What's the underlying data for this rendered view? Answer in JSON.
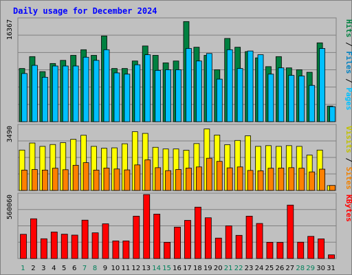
{
  "chart_data": {
    "type": "bar",
    "title": "Daily usage for December 2024",
    "categories": [
      "1",
      "2",
      "3",
      "4",
      "5",
      "6",
      "7",
      "8",
      "9",
      "10",
      "11",
      "12",
      "13",
      "14",
      "15",
      "16",
      "17",
      "18",
      "19",
      "20",
      "21",
      "22",
      "23",
      "24",
      "25",
      "26",
      "27",
      "28",
      "29",
      "30",
      "31"
    ],
    "weekend_days": [
      "1",
      "7",
      "8",
      "14",
      "15",
      "21",
      "22",
      "28",
      "29"
    ],
    "panels": [
      {
        "id": "hits",
        "max_label": "16367",
        "ylim": [
          0,
          16367
        ],
        "right_label_parts": [
          {
            "text": "Hits",
            "color": "#008040"
          },
          {
            "text": " / ",
            "color": "#000000"
          },
          {
            "text": "Files",
            "color": "#0080c0"
          },
          {
            "text": " / ",
            "color": "#000000"
          },
          {
            "text": "Pages",
            "color": "#00c0ff"
          }
        ],
        "series": [
          {
            "name": "Hits",
            "color": "#008040",
            "values": [
              8500,
              10400,
              8000,
              9300,
              9800,
              10600,
              11500,
              10600,
              13700,
              8500,
              8500,
              9700,
              12100,
              10600,
              9400,
              9700,
              16000,
              11900,
              10600,
              8300,
              13300,
              11900,
              11200,
              10200,
              8800,
              10400,
              8600,
              8300,
              7900,
              12600,
              2500
            ]
          },
          {
            "name": "Pages",
            "color": "#00c0ff",
            "values": [
              7700,
              9000,
              7100,
              8900,
              8900,
              8900,
              10300,
              9800,
              11500,
              7800,
              7600,
              9100,
              10700,
              8200,
              8300,
              8300,
              11700,
              9700,
              10900,
              6800,
              11500,
              8500,
              11300,
              10700,
              7600,
              8600,
              7400,
              7300,
              5800,
              11700,
              2400
            ]
          }
        ]
      },
      {
        "id": "visits",
        "max_label": "3490",
        "ylim": [
          0,
          3490
        ],
        "right_label_parts": [
          {
            "text": "Visits",
            "color": "#c0c000"
          },
          {
            "text": " / ",
            "color": "#000000"
          },
          {
            "text": "Sites",
            "color": "#f08000"
          }
        ],
        "series": [
          {
            "name": "Visits",
            "color": "#ffff00",
            "values": [
              2180,
              2560,
              2380,
              2480,
              2580,
              2760,
              2980,
              2380,
              2280,
              2300,
              2520,
              3170,
              3080,
              2330,
              2240,
              2240,
              2170,
              2530,
              3320,
              2990,
              2470,
              2700,
              2950,
              2380,
              2420,
              2380,
              2420,
              2380,
              1910,
              2180,
              260
            ]
          },
          {
            "name": "Sites",
            "color": "#ff8000",
            "values": [
              1100,
              1130,
              1100,
              1200,
              1120,
              1360,
              1500,
              1100,
              1210,
              1160,
              1110,
              1380,
              1650,
              1230,
              1070,
              1130,
              1210,
              1270,
              1740,
              1570,
              1220,
              1270,
              1080,
              1060,
              1200,
              1210,
              1230,
              1200,
              1000,
              1150,
              270
            ]
          }
        ]
      },
      {
        "id": "kbytes",
        "max_label": "560060",
        "ylim": [
          0,
          560060
        ],
        "right_label_parts": [
          {
            "text": "KBytes",
            "color": "#ff0000"
          }
        ],
        "series": [
          {
            "name": "KBytes",
            "color": "#ff0000",
            "values": [
              212000,
              348000,
              173000,
              232000,
              213000,
              205000,
              336000,
              225000,
              304000,
              154000,
              154000,
              371000,
              560000,
              389000,
              142000,
              275000,
              334000,
              450000,
              357000,
              179000,
              286000,
              203000,
              371000,
              307000,
              142000,
              141000,
              468000,
              143000,
              194000,
              172000,
              32000
            ]
          }
        ]
      }
    ]
  }
}
